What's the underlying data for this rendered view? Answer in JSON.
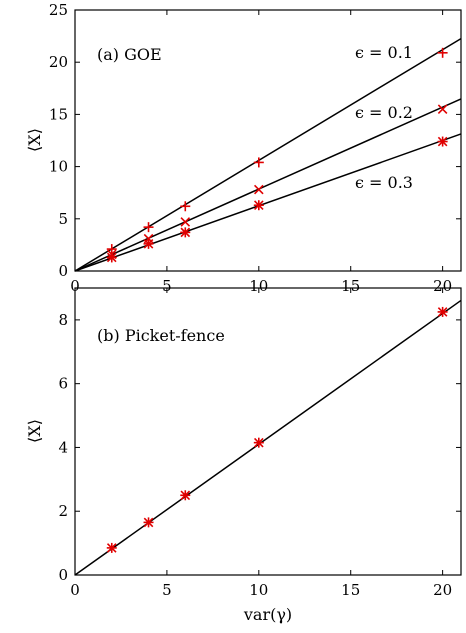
{
  "chart_data": [
    {
      "type": "scatter",
      "panel_label": "(a) GOE",
      "xlabel": "",
      "ylabel": "⟨X⟩",
      "xlim": [
        0,
        21
      ],
      "ylim": [
        0,
        25
      ],
      "xticks": [
        0,
        5,
        10,
        15,
        20
      ],
      "yticks": [
        0,
        5,
        10,
        15,
        20,
        25
      ],
      "xtick_labels": [
        "0",
        "5",
        "10",
        "15",
        "20"
      ],
      "ytick_labels": [
        "0",
        "5",
        "10",
        "15",
        "20",
        "25"
      ],
      "series": [
        {
          "name": "ϵ = 0.1",
          "marker": "plus",
          "slope": 1.06,
          "points": [
            [
              2,
              2.1
            ],
            [
              4,
              4.2
            ],
            [
              6,
              6.2
            ],
            [
              10,
              10.4
            ],
            [
              20,
              20.9
            ]
          ]
        },
        {
          "name": "ϵ = 0.2",
          "marker": "cross",
          "slope": 0.785,
          "points": [
            [
              2,
              1.6
            ],
            [
              4,
              3.1
            ],
            [
              6,
              4.7
            ],
            [
              10,
              7.8
            ],
            [
              20,
              15.5
            ]
          ]
        },
        {
          "name": "ϵ = 0.3",
          "marker": "asterisk",
          "slope": 0.625,
          "points": [
            [
              2,
              1.3
            ],
            [
              4,
              2.6
            ],
            [
              6,
              3.7
            ],
            [
              10,
              6.3
            ],
            [
              20,
              12.4
            ]
          ]
        }
      ],
      "line_color": "#000000",
      "marker_color": "#e00000"
    },
    {
      "type": "scatter",
      "panel_label": "(b) Picket-fence",
      "xlabel": "var(γ)",
      "ylabel": "⟨X⟩",
      "xlim": [
        0,
        21
      ],
      "ylim": [
        0,
        9
      ],
      "xticks": [
        0,
        5,
        10,
        15,
        20
      ],
      "yticks": [
        0,
        2,
        4,
        6,
        8
      ],
      "xtick_labels": [
        "0",
        "5",
        "10",
        "15",
        "20"
      ],
      "ytick_labels": [
        "0",
        "2",
        "4",
        "6",
        "8"
      ],
      "series": [
        {
          "name": "",
          "marker": "asterisk",
          "slope": 0.41,
          "points": [
            [
              2,
              0.85
            ],
            [
              4,
              1.65
            ],
            [
              6,
              2.5
            ],
            [
              10,
              4.15
            ],
            [
              20,
              8.25
            ]
          ]
        }
      ],
      "line_color": "#000000",
      "marker_color": "#e00000"
    }
  ]
}
